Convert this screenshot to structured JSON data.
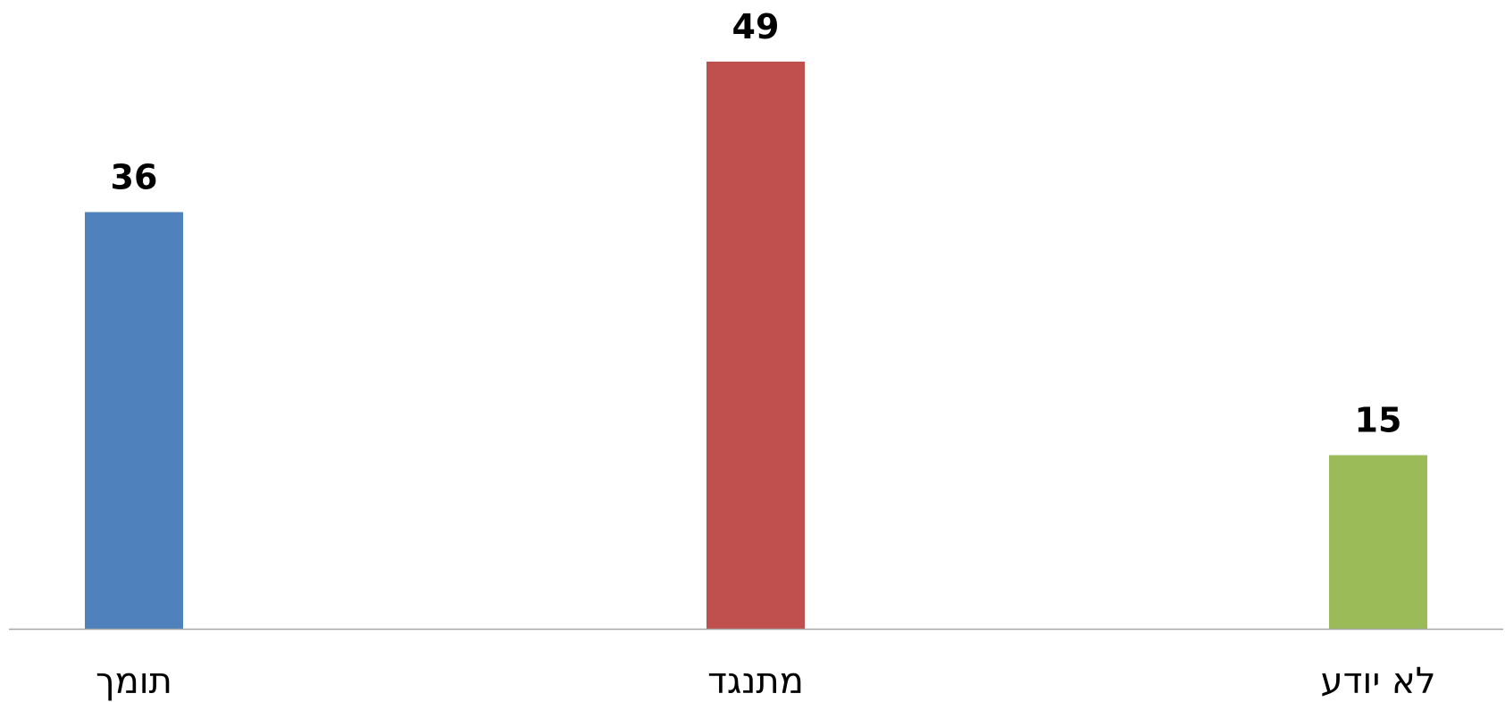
{
  "chart_data": {
    "type": "bar",
    "categories": [
      "תומך",
      "מתנגד",
      "לא יודע"
    ],
    "values": [
      36,
      49,
      15
    ],
    "colors": [
      "#4f81bd",
      "#c0504d",
      "#9bbb59"
    ],
    "axis_color": "#a6a6a6",
    "ylim": [
      0,
      49
    ],
    "grid": false,
    "legend": "none",
    "title": "",
    "xlabel": "",
    "ylabel": ""
  }
}
